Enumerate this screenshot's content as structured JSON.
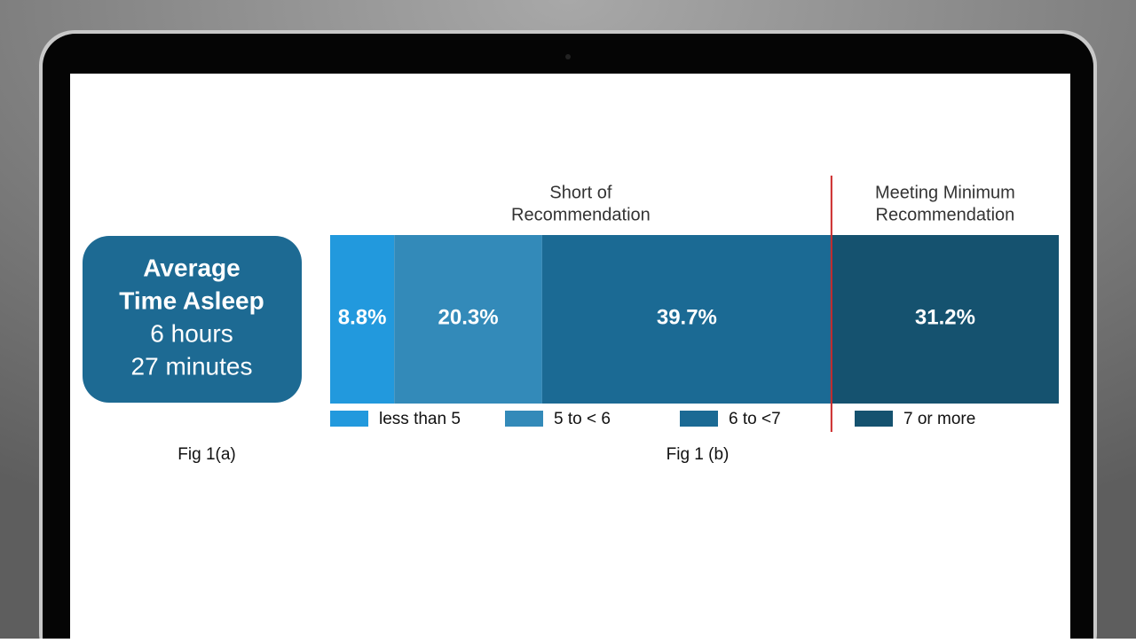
{
  "fig_a": {
    "lines": [
      "Average",
      "Time Asleep",
      "6 hours",
      "27 minutes"
    ],
    "caption": "Fig 1(a)"
  },
  "chart_data": {
    "type": "stacked-bar",
    "orientation": "horizontal",
    "annotations": [
      [
        "Short of",
        "Recommendation"
      ],
      [
        "Meeting Minimum",
        "Recommendation"
      ]
    ],
    "caption": "Fig 1 (b)",
    "series": [
      {
        "name": "less than 5",
        "color": "#2299dd",
        "values": [
          8.8
        ],
        "value_labels": [
          "8.8%"
        ]
      },
      {
        "name": "5 to < 6",
        "color": "#338ab9",
        "values": [
          20.3
        ],
        "value_labels": [
          "20.3%"
        ]
      },
      {
        "name": "6 to <7",
        "color": "#1b6a94",
        "values": [
          39.7
        ],
        "value_labels": [
          "39.7%"
        ]
      },
      {
        "name": "7 or more",
        "color": "#15526f",
        "values": [
          31.2
        ],
        "value_labels": [
          "31.2%"
        ]
      }
    ],
    "divider_color": "#cc2a2a"
  }
}
